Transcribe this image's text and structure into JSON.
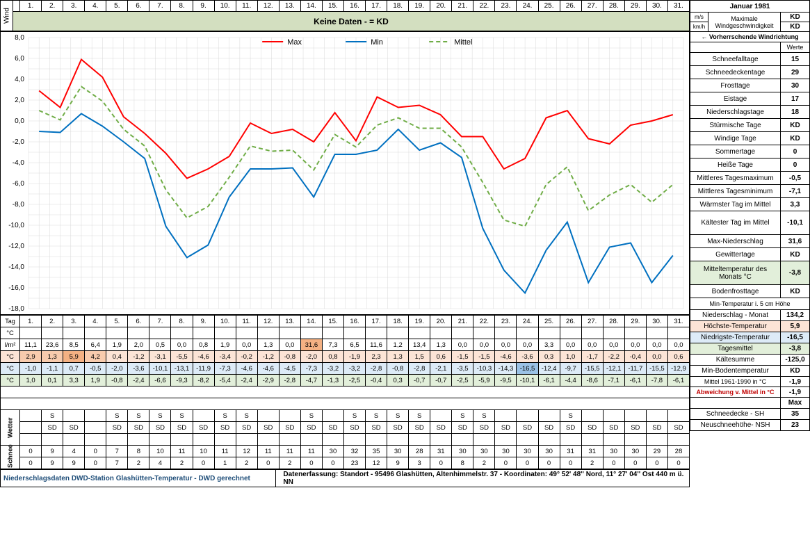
{
  "title": "Januar 1981",
  "days": [
    "1.",
    "2.",
    "3.",
    "4.",
    "5.",
    "6.",
    "7.",
    "8.",
    "9.",
    "10.",
    "11.",
    "12.",
    "13.",
    "14.",
    "15.",
    "16.",
    "17.",
    "18.",
    "19.",
    "20.",
    "21.",
    "22.",
    "23.",
    "24.",
    "25.",
    "26.",
    "27.",
    "28.",
    "29.",
    "30.",
    "31."
  ],
  "wind_label": "Wind",
  "wind_band_text": "Keine Daten -  = KD",
  "wind_ms_label": "m/s",
  "wind_kmh_label": "km/h",
  "wind_stat_label": "Maximale Windgeschwindigkeit",
  "wind_ms_val": "KD",
  "wind_kmh_val": "KD",
  "wind_dir_label": "← Vorherrschende Windrichtung",
  "werte_label": "Werte",
  "chart": {
    "type": "line",
    "legend": [
      "Max",
      "Min",
      "Mittel"
    ],
    "colors": {
      "max": "#ff0000",
      "min": "#0070c0",
      "mittel": "#70ad47"
    },
    "ylim": [
      -18,
      8
    ],
    "ystep": 2,
    "grid_color": "#d9d9d9",
    "max_series": [
      2.9,
      1.3,
      5.9,
      4.2,
      0.4,
      -1.2,
      -3.1,
      -5.5,
      -4.6,
      -3.4,
      -0.2,
      -1.2,
      -0.8,
      -2.0,
      0.8,
      -1.9,
      2.3,
      1.3,
      1.5,
      0.6,
      -1.5,
      -1.5,
      -4.6,
      -3.6,
      0.3,
      1.0,
      -1.7,
      -2.2,
      -0.4,
      0.0,
      0.6
    ],
    "min_series": [
      -1.0,
      -1.1,
      0.7,
      -0.5,
      -2.0,
      -3.6,
      -10.1,
      -13.1,
      -11.9,
      -7.3,
      -4.6,
      -4.6,
      -4.5,
      -7.3,
      -3.2,
      -3.2,
      -2.8,
      -0.8,
      -2.8,
      -2.1,
      -3.5,
      -10.3,
      -14.3,
      -16.5,
      -12.4,
      -9.7,
      -15.5,
      -12.1,
      -11.7,
      -15.5,
      -12.9
    ],
    "mittel_series": [
      1.0,
      0.1,
      3.3,
      1.9,
      -0.8,
      -2.4,
      -6.6,
      -9.3,
      -8.2,
      -5.4,
      -2.4,
      -2.9,
      -2.8,
      -4.7,
      -1.3,
      -2.5,
      -0.4,
      0.3,
      -0.7,
      -0.7,
      -2.5,
      -5.9,
      -9.5,
      -10.1,
      -6.1,
      -4.4,
      -8.6,
      -7.1,
      -6.1,
      -7.8,
      -6.1
    ]
  },
  "stats": [
    {
      "label": "Schneefalltage",
      "value": "15"
    },
    {
      "label": "Schneedeckentage",
      "value": "29"
    },
    {
      "label": "Frosttage",
      "value": "30"
    },
    {
      "label": "Eistage",
      "value": "17"
    },
    {
      "label": "Niederschlagstage",
      "value": "18"
    },
    {
      "label": "Stürmische Tage",
      "value": "KD"
    },
    {
      "label": "Windige Tage",
      "value": "KD"
    },
    {
      "label": "Sommertage",
      "value": "0"
    },
    {
      "label": "Heiße Tage",
      "value": "0"
    },
    {
      "label": "Mittleres Tagesmaximum",
      "value": "-0,5"
    },
    {
      "label": "Mittleres Tagesminimum",
      "value": "-7,1"
    },
    {
      "label": "Wärmster Tag im Mittel",
      "value": "3,3"
    },
    {
      "label": "Kältester Tag im Mittel",
      "value": "-10,1"
    },
    {
      "label": "Max-Niederschlag",
      "value": "31,6"
    },
    {
      "label": "Gewittertage",
      "value": "KD"
    },
    {
      "label": "Mitteltemperatur des Monats °C",
      "value": "-3,8",
      "bg": "#e2efda"
    },
    {
      "label": "Bodenfrosttage",
      "value": "KD"
    }
  ],
  "min_temp_5cm_label": "Min-Temperatur i. 5 cm Höhe",
  "tag_label": "Tag",
  "degc_label": "°C",
  "rows": {
    "precip": {
      "unit": "l/m²",
      "label": "Niederschlag - Monat",
      "sum": "134,2",
      "vals": [
        "11,1",
        "23,6",
        "8,5",
        "6,4",
        "1,9",
        "2,0",
        "0,5",
        "0,0",
        "0,8",
        "1,9",
        "0,0",
        "1,3",
        "0,0",
        "31,6",
        "7,3",
        "6,5",
        "11,6",
        "1,2",
        "13,4",
        "1,3",
        "0,0",
        "0,0",
        "0,0",
        "0,0",
        "3,3",
        "0,0",
        "0,0",
        "0,0",
        "0,0",
        "0,0",
        "0,0"
      ],
      "hl_idx": 13,
      "hl_class": "hl-orange"
    },
    "max": {
      "unit": "°C",
      "label": "Höchste-Temperatur",
      "sum": "5,9",
      "vals": [
        "2,9",
        "1,3",
        "5,9",
        "4,2",
        "0,4",
        "-1,2",
        "-3,1",
        "-5,5",
        "-4,6",
        "-3,4",
        "-0,2",
        "-1,2",
        "-0,8",
        "-2,0",
        "0,8",
        "-1,9",
        "2,3",
        "1,3",
        "1,5",
        "0,6",
        "-1,5",
        "-1,5",
        "-4,6",
        "-3,6",
        "0,3",
        "1,0",
        "-1,7",
        "-2,2",
        "-0,4",
        "0,0",
        "0,6"
      ],
      "hl_idx": 2,
      "hl_class": "hl-pink",
      "row_bg": "#fce4d6"
    },
    "min": {
      "unit": "°C",
      "label": "Niedrigste-Temperatur",
      "sum": "-16,5",
      "vals": [
        "-1,0",
        "-1,1",
        "0,7",
        "-0,5",
        "-2,0",
        "-3,6",
        "-10,1",
        "-13,1",
        "-11,9",
        "-7,3",
        "-4,6",
        "-4,6",
        "-4,5",
        "-7,3",
        "-3,2",
        "-3,2",
        "-2,8",
        "-0,8",
        "-2,8",
        "-2,1",
        "-3,5",
        "-10,3",
        "-14,3",
        "-16,5",
        "-12,4",
        "-9,7",
        "-15,5",
        "-12,1",
        "-11,7",
        "-15,5",
        "-12,9"
      ],
      "hl_idx": 23,
      "hl_class": "hl-blue",
      "row_bg": "#ddebf7"
    },
    "mean": {
      "unit": "°C",
      "label": "Tagesmittel",
      "sum": "-3,8",
      "vals": [
        "1,0",
        "0,1",
        "3,3",
        "1,9",
        "-0,8",
        "-2,4",
        "-6,6",
        "-9,3",
        "-8,2",
        "-5,4",
        "-2,4",
        "-2,9",
        "-2,8",
        "-4,7",
        "-1,3",
        "-2,5",
        "-0,4",
        "0,3",
        "-0,7",
        "-0,7",
        "-2,5",
        "-5,9",
        "-9,5",
        "-10,1",
        "-6,1",
        "-4,4",
        "-8,6",
        "-7,1",
        "-6,1",
        "-7,8",
        "-6,1"
      ],
      "row_bg": "#e2efda"
    }
  },
  "extra_stats": [
    {
      "label": "Kältesumme",
      "value": "-125,0"
    },
    {
      "label": "Min-Bodentemperatur",
      "value": "KD"
    }
  ],
  "wetter_label": "Wetter",
  "wetter_rows": {
    "snow_s": [
      "",
      "S",
      "",
      "",
      "S",
      "S",
      "S",
      "S",
      "",
      "S",
      "S",
      "",
      "",
      "S",
      "",
      "S",
      "S",
      "S",
      "S",
      "",
      "S",
      "S",
      "",
      "",
      "",
      "S",
      "",
      "",
      "",
      "",
      ""
    ],
    "snow_sd": [
      "",
      "SD",
      "SD",
      "",
      "SD",
      "SD",
      "SD",
      "SD",
      "SD",
      "SD",
      "SD",
      "SD",
      "SD",
      "SD",
      "SD",
      "SD",
      "SD",
      "SD",
      "SD",
      "SD",
      "SD",
      "SD",
      "SD",
      "SD",
      "SD",
      "SD",
      "SD",
      "SD",
      "SD",
      "SD",
      "SD"
    ]
  },
  "wetter_stats": [
    {
      "label": "Mittel 1961-1990 in °C",
      "value": "-1,9"
    },
    {
      "label": "Abweichung v. Mittel in °C",
      "value": "-1,9",
      "red": true
    }
  ],
  "max_label": "Max",
  "schnee_label": "Schnee",
  "snow_rows": {
    "sh": [
      "0",
      "9",
      "4",
      "0",
      "7",
      "8",
      "10",
      "11",
      "10",
      "11",
      "12",
      "11",
      "11",
      "11",
      "30",
      "32",
      "35",
      "30",
      "28",
      "31",
      "30",
      "30",
      "30",
      "30",
      "30",
      "31",
      "31",
      "30",
      "30",
      "29",
      "28"
    ],
    "nsh": [
      "0",
      "9",
      "9",
      "0",
      "7",
      "2",
      "4",
      "2",
      "0",
      "1",
      "2",
      "0",
      "2",
      "0",
      "0",
      "23",
      "12",
      "9",
      "3",
      "0",
      "8",
      "2",
      "0",
      "0",
      "0",
      "0",
      "2",
      "0",
      "0",
      "0",
      "0"
    ]
  },
  "snow_stats": [
    {
      "label": "Schneedecke -   SH",
      "value": "35"
    },
    {
      "label": "Neuschneehöhe- NSH",
      "value": "23"
    }
  ],
  "footer_left": "Niederschlagsdaten DWD-Station Glashütten-Temperatur -  DWD gerechnet",
  "footer_right": "Datenerfassung:  Standort -  95496 Glashütten, Altenhimmelstr. 37 - Koordinaten:  49° 52' 48'' Nord,   11° 27' 04'' Ost   440 m ü. NN"
}
